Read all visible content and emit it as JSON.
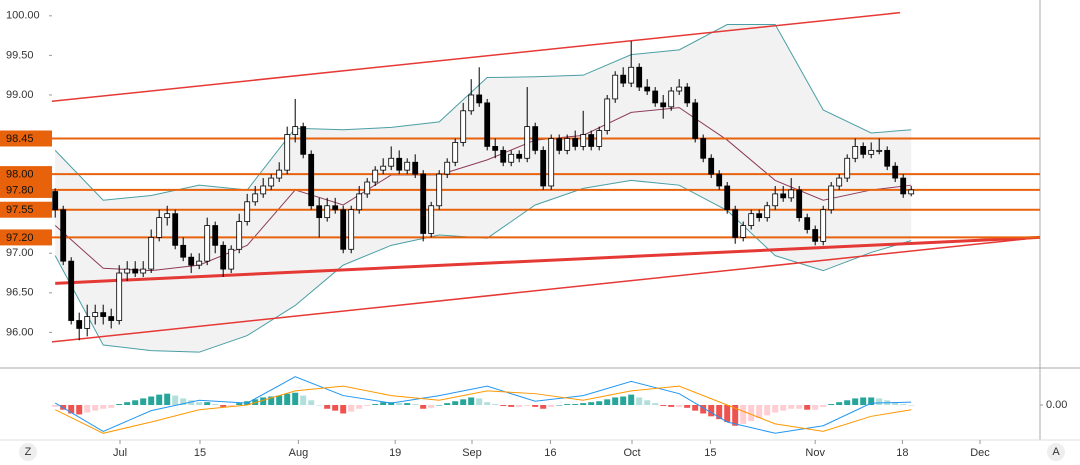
{
  "chart_data": [
    {
      "type": "candlestick",
      "xlim": [
        -0.4,
        123.1
      ],
      "ylim": [
        95.55,
        100.2
      ],
      "yticks": [
        {
          "value": 100,
          "label": "100.00"
        },
        {
          "value": 99.5,
          "label": "99.50"
        },
        {
          "value": 99,
          "label": "99.00"
        },
        {
          "value": 97,
          "label": "97.00"
        },
        {
          "value": 96.5,
          "label": "96.50"
        },
        {
          "value": 96,
          "label": "96.00"
        }
      ],
      "xticks": [
        {
          "value": 8.1,
          "label": "Jul"
        },
        {
          "value": 18.1,
          "label": "15"
        },
        {
          "value": 30.4,
          "label": "Aug"
        },
        {
          "value": 42.5,
          "label": "19"
        },
        {
          "value": 52.1,
          "label": "Sep"
        },
        {
          "value": 61.9,
          "label": "16"
        },
        {
          "value": 72.1,
          "label": "Oct"
        },
        {
          "value": 81.9,
          "label": "15"
        },
        {
          "value": 95,
          "label": "Nov"
        },
        {
          "value": 105.9,
          "label": "18"
        },
        {
          "value": 115.6,
          "label": "Dec"
        }
      ],
      "levels": [
        98.45,
        {
          "value": 98,
          "label": "98.00"
        },
        {
          "value": 97.8,
          "label": "97.80"
        },
        97.55,
        {
          "value": 97.2,
          "label": "97.20"
        }
      ],
      "level_color": "#e8620c",
      "up_color": "#ffffff",
      "down_color": "#000000",
      "candles": [
        [
          97.78,
          97.82,
          97.45,
          97.55
        ],
        [
          97.55,
          97.6,
          96.85,
          96.9
        ],
        [
          96.9,
          96.95,
          96.1,
          96.15
        ],
        [
          96.15,
          96.25,
          95.9,
          96.05
        ],
        [
          96.05,
          96.35,
          95.95,
          96.2
        ],
        [
          96.2,
          96.35,
          96.1,
          96.25
        ],
        [
          96.25,
          96.35,
          96.1,
          96.2
        ],
        [
          96.2,
          96.3,
          96.05,
          96.15
        ],
        [
          96.15,
          96.85,
          96.1,
          96.75
        ],
        [
          96.75,
          96.9,
          96.65,
          96.8
        ],
        [
          96.8,
          96.9,
          96.7,
          96.75
        ],
        [
          96.75,
          96.9,
          96.7,
          96.8
        ],
        [
          96.8,
          97.3,
          96.75,
          97.2
        ],
        [
          97.2,
          97.55,
          97.15,
          97.45
        ],
        [
          97.45,
          97.6,
          97.35,
          97.5
        ],
        [
          97.5,
          97.55,
          97.05,
          97.1
        ],
        [
          97.1,
          97.2,
          96.9,
          96.95
        ],
        [
          96.95,
          97.0,
          96.75,
          96.85
        ],
        [
          96.85,
          97.0,
          96.8,
          96.9
        ],
        [
          96.9,
          97.45,
          96.85,
          97.35
        ],
        [
          97.35,
          97.4,
          97.0,
          97.1
        ],
        [
          97.1,
          97.15,
          96.7,
          96.8
        ],
        [
          96.8,
          97.1,
          96.75,
          97.05
        ],
        [
          97.05,
          97.5,
          97.0,
          97.4
        ],
        [
          97.4,
          97.75,
          97.35,
          97.65
        ],
        [
          97.65,
          97.85,
          97.6,
          97.75
        ],
        [
          97.75,
          97.95,
          97.7,
          97.85
        ],
        [
          97.85,
          98.0,
          97.8,
          97.95
        ],
        [
          97.95,
          98.15,
          97.9,
          98.05
        ],
        [
          98.05,
          98.6,
          98.0,
          98.5
        ],
        [
          98.5,
          98.95,
          98.4,
          98.6
        ],
        [
          98.6,
          98.65,
          98.2,
          98.25
        ],
        [
          98.25,
          98.3,
          97.55,
          97.6
        ],
        [
          97.6,
          97.7,
          97.2,
          97.45
        ],
        [
          97.45,
          97.7,
          97.4,
          97.6
        ],
        [
          97.6,
          97.7,
          97.5,
          97.55
        ],
        [
          97.55,
          97.6,
          97.0,
          97.05
        ],
        [
          97.05,
          97.6,
          97.0,
          97.55
        ],
        [
          97.55,
          97.85,
          97.5,
          97.75
        ],
        [
          97.75,
          97.95,
          97.7,
          97.9
        ],
        [
          97.9,
          98.1,
          97.85,
          98.05
        ],
        [
          98.05,
          98.2,
          98.0,
          98.1
        ],
        [
          98.1,
          98.35,
          98.05,
          98.2
        ],
        [
          98.2,
          98.3,
          98.0,
          98.05
        ],
        [
          98.05,
          98.2,
          98.0,
          98.15
        ],
        [
          98.15,
          98.25,
          97.95,
          98.0
        ],
        [
          98.0,
          98.05,
          97.15,
          97.25
        ],
        [
          97.25,
          97.65,
          97.2,
          97.6
        ],
        [
          97.6,
          98.05,
          97.55,
          98.0
        ],
        [
          98.0,
          98.2,
          97.95,
          98.15
        ],
        [
          98.15,
          98.45,
          98.1,
          98.4
        ],
        [
          98.4,
          98.9,
          98.35,
          98.8
        ],
        [
          98.8,
          99.2,
          98.75,
          99.0
        ],
        [
          99.0,
          99.35,
          98.85,
          98.9
        ],
        [
          98.9,
          98.95,
          98.3,
          98.35
        ],
        [
          98.35,
          98.45,
          98.2,
          98.3
        ],
        [
          98.3,
          98.35,
          98.1,
          98.15
        ],
        [
          98.15,
          98.3,
          98.1,
          98.25
        ],
        [
          98.25,
          98.3,
          98.15,
          98.2
        ],
        [
          98.2,
          99.1,
          98.15,
          98.6
        ],
        [
          98.6,
          98.65,
          98.25,
          98.3
        ],
        [
          98.3,
          98.35,
          97.8,
          97.85
        ],
        [
          97.85,
          98.5,
          97.8,
          98.45
        ],
        [
          98.45,
          98.5,
          98.25,
          98.3
        ],
        [
          98.3,
          98.5,
          98.25,
          98.45
        ],
        [
          98.45,
          98.55,
          98.3,
          98.35
        ],
        [
          98.35,
          98.8,
          98.3,
          98.5
        ],
        [
          98.5,
          98.55,
          98.3,
          98.35
        ],
        [
          98.35,
          98.6,
          98.3,
          98.55
        ],
        [
          98.55,
          99.0,
          98.5,
          98.95
        ],
        [
          98.95,
          99.3,
          98.9,
          99.25
        ],
        [
          99.25,
          99.35,
          99.1,
          99.15
        ],
        [
          99.15,
          99.68,
          99.1,
          99.35
        ],
        [
          99.35,
          99.4,
          99.05,
          99.1
        ],
        [
          99.1,
          99.2,
          99.0,
          99.05
        ],
        [
          99.05,
          99.1,
          98.85,
          98.9
        ],
        [
          98.9,
          99.0,
          98.7,
          98.85
        ],
        [
          98.85,
          99.1,
          98.8,
          99.05
        ],
        [
          99.05,
          99.2,
          99.0,
          99.1
        ],
        [
          99.1,
          99.15,
          98.85,
          98.9
        ],
        [
          98.9,
          98.95,
          98.4,
          98.45
        ],
        [
          98.45,
          98.5,
          98.15,
          98.2
        ],
        [
          98.2,
          98.25,
          97.95,
          98.0
        ],
        [
          98.0,
          98.05,
          97.8,
          97.85
        ],
        [
          97.85,
          97.9,
          97.5,
          97.55
        ],
        [
          97.55,
          97.6,
          97.12,
          97.2
        ],
        [
          97.2,
          97.4,
          97.15,
          97.35
        ],
        [
          97.35,
          97.55,
          97.3,
          97.5
        ],
        [
          97.5,
          97.55,
          97.4,
          97.45
        ],
        [
          97.45,
          97.65,
          97.4,
          97.6
        ],
        [
          97.6,
          97.85,
          97.55,
          97.75
        ],
        [
          97.75,
          97.85,
          97.65,
          97.7
        ],
        [
          97.7,
          97.95,
          97.65,
          97.8
        ],
        [
          97.8,
          97.85,
          97.4,
          97.45
        ],
        [
          97.45,
          97.5,
          97.25,
          97.3
        ],
        [
          97.3,
          97.35,
          97.1,
          97.15
        ],
        [
          97.15,
          97.6,
          97.1,
          97.55
        ],
        [
          97.55,
          97.9,
          97.5,
          97.85
        ],
        [
          97.85,
          98.0,
          97.8,
          97.95
        ],
        [
          97.95,
          98.25,
          97.9,
          98.2
        ],
        [
          98.2,
          98.45,
          98.15,
          98.35
        ],
        [
          98.35,
          98.4,
          98.2,
          98.25
        ],
        [
          98.25,
          98.4,
          98.2,
          98.3
        ],
        [
          98.3,
          98.45,
          98.25,
          98.3
        ],
        [
          98.3,
          98.35,
          98.05,
          98.1
        ],
        [
          98.1,
          98.15,
          97.9,
          97.95
        ],
        [
          97.95,
          98.0,
          97.7,
          97.75
        ],
        [
          97.75,
          97.85,
          97.72,
          97.8
        ]
      ],
      "bands": {
        "x": [
          0,
          6,
          12,
          18,
          24,
          30,
          36,
          42,
          48,
          54,
          60,
          66,
          72,
          78,
          84,
          90,
          96,
          102,
          107
        ],
        "upper": [
          98.3,
          97.67,
          97.73,
          97.86,
          97.8,
          98.58,
          98.56,
          98.59,
          98.66,
          99.22,
          99.23,
          99.25,
          99.51,
          99.57,
          99.89,
          99.89,
          98.81,
          98.52,
          98.56
        ],
        "lower": [
          96.97,
          95.84,
          95.77,
          95.75,
          95.96,
          96.34,
          96.85,
          97.1,
          97.23,
          97.19,
          97.61,
          97.82,
          97.92,
          97.86,
          97.54,
          96.97,
          96.78,
          97.01,
          97.16
        ],
        "middle": [
          97.35,
          96.81,
          96.78,
          96.85,
          97.1,
          97.8,
          97.61,
          97.99,
          97.99,
          98.18,
          98.43,
          98.49,
          98.78,
          98.84,
          98.43,
          97.92,
          97.67,
          97.8,
          97.86
        ],
        "band_color": "#4a9fa5",
        "middle_color": "#8e3b5c",
        "fill": "#f2f2f2"
      },
      "trendlines": [
        {
          "x": [
            -0.4,
            105.6
          ],
          "y": [
            98.92,
            100.04
          ],
          "color": "#e53935",
          "width": 1.5
        },
        {
          "x": [
            -0.4,
            123.1
          ],
          "y": [
            95.88,
            97.2
          ],
          "color": "#e53935",
          "width": 1.5
        },
        {
          "x": [
            0,
            123.1
          ],
          "y": [
            96.62,
            97.2
          ],
          "color": "#e53935",
          "width": 3
        }
      ]
    },
    {
      "type": "macd",
      "ylim": [
        -0.35,
        0.35
      ],
      "yticks": [
        {
          "value": 0,
          "label": "0.00"
        }
      ],
      "histogram": [
        -0.02,
        -0.05,
        -0.09,
        -0.1,
        -0.08,
        -0.06,
        -0.04,
        -0.03,
        0.01,
        0.03,
        0.05,
        0.07,
        0.09,
        0.11,
        0.12,
        0.1,
        0.07,
        0.05,
        0.03,
        0.03,
        0.01,
        -0.02,
        -0.01,
        0.02,
        0.04,
        0.06,
        0.08,
        0.09,
        0.1,
        0.12,
        0.13,
        0.1,
        0.05,
        0.0,
        -0.04,
        -0.06,
        -0.09,
        -0.07,
        -0.04,
        -0.01,
        0.01,
        0.03,
        0.03,
        0.02,
        0.02,
        0.01,
        -0.04,
        -0.03,
        0.0,
        0.02,
        0.04,
        0.06,
        0.08,
        0.07,
        0.03,
        0.01,
        -0.01,
        -0.02,
        -0.02,
        -0.01,
        -0.02,
        -0.04,
        -0.02,
        0.0,
        0.01,
        0.01,
        0.02,
        0.03,
        0.04,
        0.06,
        0.08,
        0.09,
        0.11,
        0.08,
        0.05,
        0.02,
        -0.01,
        -0.02,
        -0.02,
        -0.03,
        -0.06,
        -0.09,
        -0.12,
        -0.15,
        -0.18,
        -0.22,
        -0.2,
        -0.17,
        -0.14,
        -0.11,
        -0.08,
        -0.06,
        -0.04,
        -0.04,
        -0.05,
        -0.05,
        -0.02,
        0.01,
        0.03,
        0.05,
        0.07,
        0.08,
        0.08,
        0.07,
        0.05,
        0.03,
        0.01,
        0.0
      ],
      "x": [
        0,
        6,
        12,
        18,
        24,
        30,
        36,
        42,
        48,
        54,
        60,
        66,
        72,
        78,
        84,
        90,
        96,
        102,
        107
      ],
      "macd": [
        0.02,
        -0.28,
        -0.06,
        0.05,
        0.02,
        0.3,
        0.1,
        0.02,
        0.1,
        0.2,
        0.04,
        0.1,
        0.25,
        0.12,
        -0.18,
        -0.3,
        -0.22,
        0.02,
        0.03
      ],
      "signal": [
        -0.05,
        -0.3,
        -0.18,
        -0.05,
        0.0,
        0.15,
        0.2,
        0.1,
        0.05,
        0.15,
        0.12,
        0.05,
        0.15,
        0.2,
        0.0,
        -0.2,
        -0.28,
        -0.12,
        -0.05
      ],
      "macd_color": "#2196f3",
      "signal_color": "#ff9800"
    }
  ],
  "ui": {
    "zoom_button": "Z",
    "auto_button": "A"
  }
}
